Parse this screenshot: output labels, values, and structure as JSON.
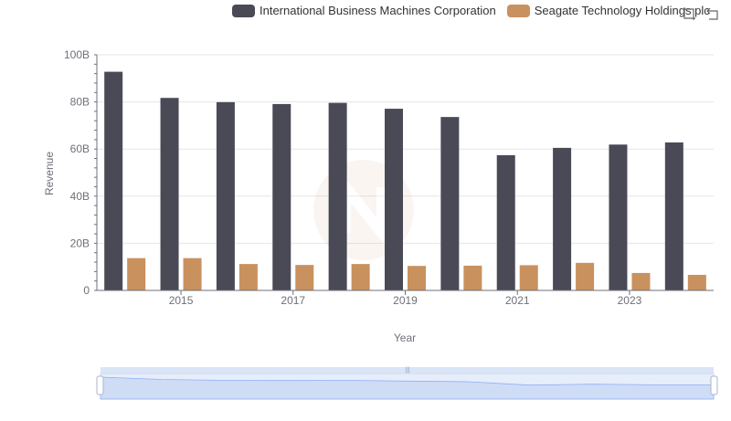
{
  "legend": {
    "items": [
      {
        "label": "International Business Machines Corporation",
        "color": "#4a4a57"
      },
      {
        "label": "Seagate Technology Holdings plc",
        "color": "#c8915e"
      }
    ]
  },
  "toolbox": {
    "icons": [
      "zoom-select-icon",
      "zoom-reset-icon"
    ]
  },
  "chart_data": {
    "type": "bar",
    "xlabel": "Year",
    "ylabel": "Revenue",
    "ylim": [
      0,
      100000000000
    ],
    "y_ticks": [
      "0",
      "20B",
      "40B",
      "60B",
      "80B",
      "100B"
    ],
    "x_tick_labels": [
      "2015",
      "2017",
      "2019",
      "2021",
      "2023"
    ],
    "categories": [
      "2014",
      "2015",
      "2016",
      "2017",
      "2018",
      "2019",
      "2020",
      "2021",
      "2022",
      "2023",
      "2024"
    ],
    "series": [
      {
        "name": "International Business Machines Corporation",
        "color": "#4a4a57",
        "values": [
          92800000000,
          81700000000,
          79900000000,
          79100000000,
          79600000000,
          77100000000,
          73600000000,
          57400000000,
          60500000000,
          61900000000,
          62800000000
        ]
      },
      {
        "name": "Seagate Technology Holdings plc",
        "color": "#c8915e",
        "values": [
          13700000000,
          13700000000,
          11200000000,
          10800000000,
          11200000000,
          10400000000,
          10500000000,
          10700000000,
          11700000000,
          7400000000,
          6600000000
        ]
      }
    ],
    "grid": true,
    "legend_position": "top",
    "data_zoom": true
  }
}
